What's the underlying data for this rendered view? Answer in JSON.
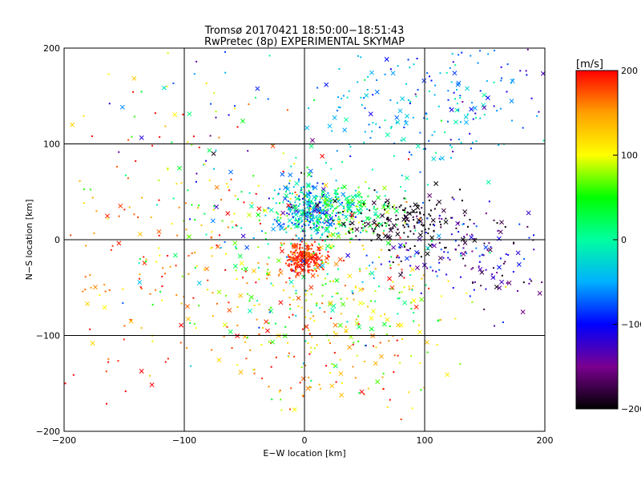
{
  "chart_data": {
    "type": "scatter",
    "title": "Tromsø 20170421 18:50:00−18:51:43",
    "subtitle": "RwPretec (8p) EXPERIMENTAL SKYMAP",
    "xlabel": "E−W location [km]",
    "ylabel": "N−S location [km]",
    "xlim": [
      -200,
      200
    ],
    "ylim": [
      -200,
      200
    ],
    "x_ticks": [
      -200,
      -100,
      0,
      100,
      200
    ],
    "y_ticks": [
      -200,
      -100,
      0,
      100,
      200
    ],
    "x_tick_labels": [
      "−200",
      "−100",
      "0",
      "100",
      "200"
    ],
    "y_tick_labels": [
      "−200",
      "−100",
      "0",
      "100",
      "200"
    ],
    "grid": true,
    "colorbar": {
      "label": "[m/s]",
      "range": [
        -200,
        200
      ],
      "ticks": [
        200,
        100,
        0,
        -100,
        -200
      ],
      "tick_labels": [
        "200",
        "100",
        "0",
        "−100",
        "−200"
      ],
      "colors": [
        "#000000",
        "#7a0090",
        "#0000ff",
        "#00b0ff",
        "#00ffa0",
        "#00ff00",
        "#ffff00",
        "#ffa000",
        "#ff0000"
      ]
    },
    "markers": [
      "cross",
      "dot"
    ],
    "clusters": [
      {
        "x": 0,
        "y": -20,
        "sx": 8,
        "sy": 8,
        "n": 220,
        "v": 190,
        "vs": 15
      },
      {
        "x": 5,
        "y": 30,
        "sx": 15,
        "sy": 15,
        "n": 320,
        "v": -40,
        "vs": 50
      },
      {
        "x": 35,
        "y": 30,
        "sx": 20,
        "sy": 15,
        "n": 180,
        "v": 30,
        "vs": 40
      },
      {
        "x": 80,
        "y": 20,
        "sx": 25,
        "sy": 15,
        "n": 160,
        "v": -195,
        "vs": 10
      },
      {
        "x": 120,
        "y": -10,
        "sx": 30,
        "sy": 20,
        "n": 120,
        "v": -130,
        "vs": 40
      },
      {
        "x": 90,
        "y": 140,
        "sx": 50,
        "sy": 40,
        "n": 180,
        "v": -40,
        "vs": 30
      },
      {
        "x": 30,
        "y": -60,
        "sx": 50,
        "sy": 40,
        "n": 280,
        "v": 90,
        "vs": 70
      },
      {
        "x": -130,
        "y": -20,
        "sx": 50,
        "sy": 60,
        "n": 150,
        "v": 170,
        "vs": 40
      },
      {
        "x": -40,
        "y": 10,
        "sx": 50,
        "sy": 50,
        "n": 160,
        "v": 40,
        "vs": 100
      },
      {
        "x": 20,
        "y": -120,
        "sx": 40,
        "sy": 40,
        "n": 100,
        "v": 140,
        "vs": 60
      },
      {
        "x": -100,
        "y": 120,
        "sx": 60,
        "sy": 50,
        "n": 60,
        "v": 60,
        "vs": 120
      },
      {
        "x": 150,
        "y": 150,
        "sx": 30,
        "sy": 30,
        "n": 50,
        "v": -90,
        "vs": 40
      },
      {
        "x": 170,
        "y": -30,
        "sx": 20,
        "sy": 30,
        "n": 50,
        "v": -140,
        "vs": 40
      }
    ]
  }
}
